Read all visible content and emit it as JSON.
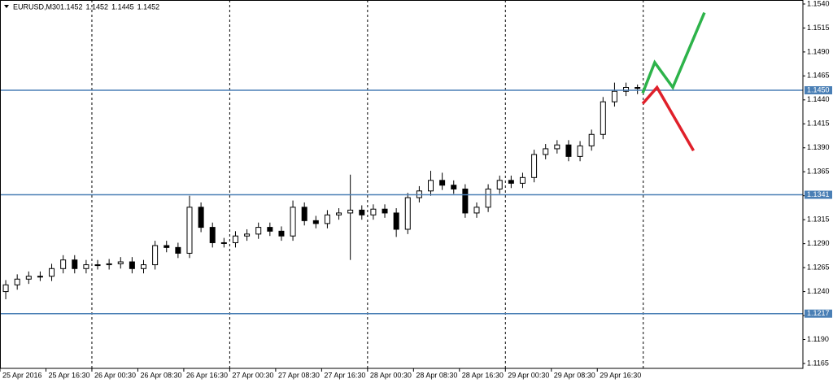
{
  "chart_data": {
    "type": "candlestick",
    "symbol": "EURUSD,M30",
    "header_prices": [
      1.1452,
      1.1452,
      1.1445,
      1.1452
    ],
    "x": [
      0,
      4,
      8,
      12,
      16,
      20,
      24,
      28,
      32,
      36,
      40,
      44,
      48,
      52,
      56,
      60,
      64,
      68,
      72,
      76,
      80,
      84,
      88,
      92,
      96,
      100,
      104,
      108,
      112,
      116,
      120,
      124,
      128,
      132,
      136,
      140,
      144,
      148,
      152,
      156,
      160,
      164,
      168,
      172,
      176,
      180,
      184,
      188,
      192,
      196,
      200,
      204,
      208,
      212,
      216,
      220
    ],
    "open": [
      1.124,
      1.1247,
      1.1253,
      1.1256,
      1.1256,
      1.1264,
      1.1273,
      1.1264,
      1.1268,
      1.1268,
      1.1269,
      1.1271,
      1.1264,
      1.1268,
      1.1288,
      1.1286,
      1.128,
      1.1328,
      1.1307,
      1.1291,
      1.1291,
      1.1298,
      1.13,
      1.1307,
      1.1303,
      1.1298,
      1.1328,
      1.1314,
      1.1311,
      1.132,
      1.1322,
      1.1325,
      1.132,
      1.1326,
      1.1322,
      1.1305,
      1.1338,
      1.1345,
      1.1356,
      1.1351,
      1.1347,
      1.1322,
      1.1328,
      1.1347,
      1.1356,
      1.1353,
      1.1359,
      1.1383,
      1.1389,
      1.1393,
      1.1381,
      1.1392,
      1.1404,
      1.1438,
      1.1449,
      1.1453
    ],
    "high": [
      1.1252,
      1.1258,
      1.1261,
      1.1261,
      1.1269,
      1.1278,
      1.1278,
      1.1273,
      1.1273,
      1.1274,
      1.1276,
      1.1276,
      1.1273,
      1.1293,
      1.1293,
      1.1291,
      1.134,
      1.1333,
      1.1312,
      1.1296,
      1.1303,
      1.1305,
      1.1312,
      1.1312,
      1.1308,
      1.1335,
      1.1333,
      1.1319,
      1.1325,
      1.1327,
      1.1362,
      1.133,
      1.1331,
      1.1331,
      1.1327,
      1.1343,
      1.135,
      1.1366,
      1.1364,
      1.1356,
      1.1352,
      1.1333,
      1.1352,
      1.1361,
      1.1361,
      1.1364,
      1.1388,
      1.1394,
      1.1398,
      1.1398,
      1.1397,
      1.1409,
      1.1443,
      1.1458,
      1.1458,
      1.1456
    ],
    "low": [
      1.1232,
      1.1242,
      1.1248,
      1.1251,
      1.1251,
      1.1259,
      1.1259,
      1.1259,
      1.1263,
      1.1263,
      1.1264,
      1.1259,
      1.1259,
      1.1263,
      1.1281,
      1.1275,
      1.1275,
      1.1302,
      1.1286,
      1.1286,
      1.1286,
      1.1293,
      1.1295,
      1.1298,
      1.1293,
      1.1293,
      1.1309,
      1.1306,
      1.1306,
      1.1315,
      1.1273,
      1.1315,
      1.1315,
      1.1317,
      1.1297,
      1.13,
      1.1333,
      1.134,
      1.1346,
      1.1342,
      1.1317,
      1.1317,
      1.1323,
      1.1342,
      1.1348,
      1.1348,
      1.1354,
      1.1378,
      1.1384,
      1.1376,
      1.1376,
      1.1387,
      1.1399,
      1.1433,
      1.1444,
      1.1446
    ],
    "close": [
      1.1247,
      1.1253,
      1.1256,
      1.1256,
      1.1264,
      1.1273,
      1.1264,
      1.1268,
      1.1268,
      1.1269,
      1.1271,
      1.1264,
      1.1268,
      1.1288,
      1.1286,
      1.128,
      1.1328,
      1.1307,
      1.1291,
      1.1291,
      1.1298,
      1.13,
      1.1307,
      1.1303,
      1.1298,
      1.1328,
      1.1314,
      1.1311,
      1.132,
      1.1322,
      1.1325,
      1.132,
      1.1326,
      1.1322,
      1.1305,
      1.1338,
      1.1345,
      1.1356,
      1.1351,
      1.1347,
      1.1322,
      1.1328,
      1.1347,
      1.1356,
      1.1353,
      1.1359,
      1.1383,
      1.1389,
      1.1393,
      1.1381,
      1.1392,
      1.1404,
      1.1438,
      1.1449,
      1.1453,
      1.1452
    ],
    "xlim": [
      -2,
      277.6
    ],
    "ylim": [
      1.15442,
      1.11599
    ],
    "yticks": [
      {
        "value": 1.154,
        "label": "1.1540"
      },
      {
        "value": 1.1515,
        "label": "1.1515"
      },
      {
        "value": 1.149,
        "label": "1.1490"
      },
      {
        "value": 1.1465,
        "label": "1.1465"
      },
      {
        "value": 1.144,
        "label": "1.1440"
      },
      {
        "value": 1.1415,
        "label": "1.1415"
      },
      {
        "value": 1.139,
        "label": "1.1390"
      },
      {
        "value": 1.1365,
        "label": "1.1365"
      },
      {
        "value": 1.134,
        "label": "1.1340"
      },
      {
        "value": 1.1315,
        "label": "1.1315"
      },
      {
        "value": 1.129,
        "label": "1.1290"
      },
      {
        "value": 1.1265,
        "label": "1.1265"
      },
      {
        "value": 1.124,
        "label": "1.1240"
      },
      {
        "value": 1.1215,
        "label": "1.1215"
      },
      {
        "value": 1.119,
        "label": "1.1190"
      },
      {
        "value": 1.1165,
        "label": "1.1165"
      }
    ],
    "xticks": [
      {
        "value": -2,
        "label": "25 Apr 2016"
      },
      {
        "value": 14,
        "label": "25 Apr 16:30"
      },
      {
        "value": 30,
        "label": "26 Apr 00:30"
      },
      {
        "value": 46,
        "label": "26 Apr 08:30"
      },
      {
        "value": 62,
        "label": "26 Apr 16:30"
      },
      {
        "value": 78,
        "label": "27 Apr 00:30"
      },
      {
        "value": 94,
        "label": "27 Apr 08:30"
      },
      {
        "value": 110,
        "label": "27 Apr 16:30"
      },
      {
        "value": 126,
        "label": "28 Apr 00:30"
      },
      {
        "value": 142,
        "label": "28 Apr 08:30"
      },
      {
        "value": 158,
        "label": "28 Apr 16:30"
      },
      {
        "value": 174,
        "label": "29 Apr 00:30"
      },
      {
        "value": 190,
        "label": "29 Apr 08:30"
      },
      {
        "value": 206,
        "label": "29 Apr 16:30"
      }
    ],
    "separators": [
      30,
      78,
      126,
      174,
      222
    ],
    "levels": [
      {
        "value": 1.145,
        "label": "1.1450"
      },
      {
        "value": 1.1341,
        "label": "1.1341"
      },
      {
        "value": 1.1217,
        "label": "1.1217"
      }
    ],
    "level_color": "#4a7fb5",
    "forecast_lines": [
      {
        "color": "#2db34a",
        "x": [
          221.8,
          226,
          232.3,
          243.3
        ],
        "values": [
          1.1447,
          1.1479,
          1.1453,
          1.1531
        ]
      },
      {
        "color": "#e0202a",
        "x": [
          221.8,
          226.8,
          239.5
        ],
        "values": [
          1.1436,
          1.1453,
          1.1387
        ]
      }
    ]
  }
}
